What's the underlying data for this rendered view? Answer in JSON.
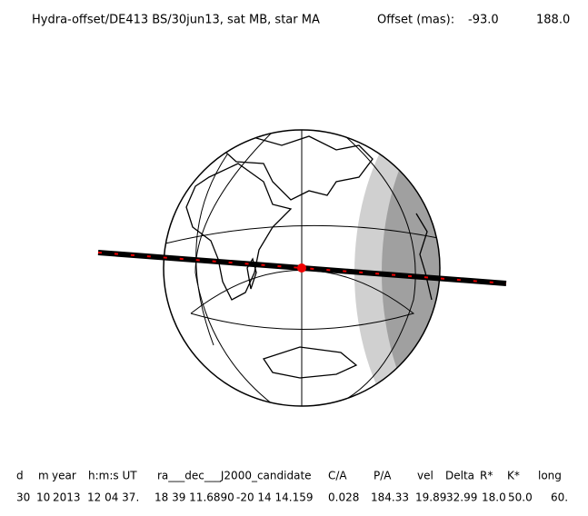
{
  "header": {
    "title": "Hydra-offset/DE413 BS/30jun13, sat MB, star MA",
    "offset_label": "Offset (mas):",
    "offset_values": [
      "-93.0",
      "188.0"
    ]
  },
  "table": {
    "columns": [
      "d",
      "m",
      "year",
      "h:m:s UT",
      "ra___dec___J2000_candidate",
      "C/A",
      "P/A",
      "vel",
      "Delta",
      "R*",
      "K*",
      "long"
    ],
    "rows": [
      [
        "30",
        "10",
        "2013",
        "12 04 37.",
        "18 39 11.6890",
        "-20 14 14.159",
        "0.028",
        "184.33",
        "19.89",
        "32.99",
        "18.0",
        "50.0",
        "60."
      ]
    ]
  }
}
